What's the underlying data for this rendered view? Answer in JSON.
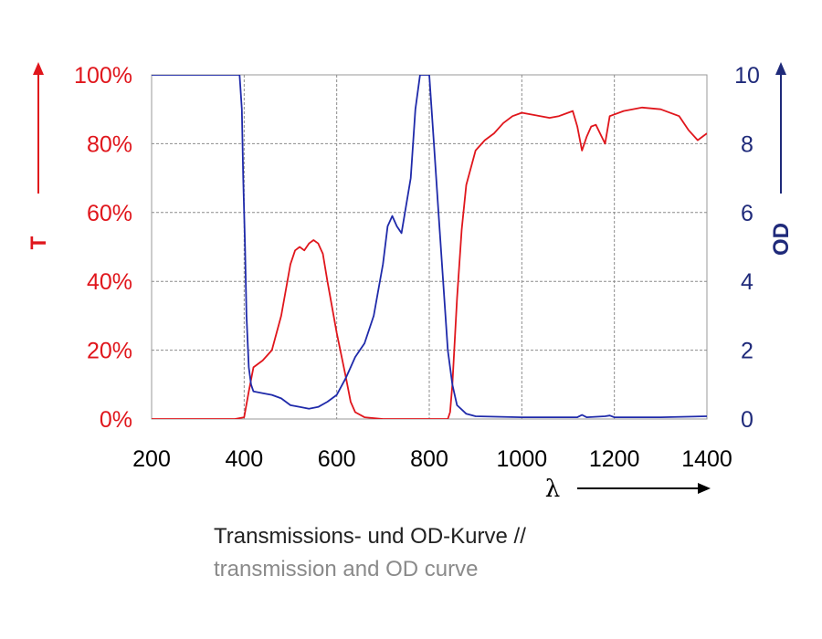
{
  "chart_data": {
    "type": "line",
    "x_axis": {
      "label": "λ",
      "range": [
        200,
        1400
      ],
      "ticks": [
        200,
        400,
        600,
        800,
        1000,
        1200,
        1400
      ],
      "tick_labels": [
        "200",
        "400",
        "600",
        "800",
        "1000",
        "1200",
        "1400"
      ]
    },
    "y_axis_left": {
      "label": "T",
      "range": [
        0,
        100
      ],
      "ticks": [
        0,
        20,
        40,
        60,
        80,
        100
      ],
      "tick_labels": [
        "0%",
        "20%",
        "40%",
        "60%",
        "80%",
        "100%"
      ],
      "color": "#e0161c"
    },
    "y_axis_right": {
      "label": "OD",
      "range": [
        0,
        10
      ],
      "ticks": [
        0,
        2,
        4,
        6,
        8,
        10
      ],
      "tick_labels": [
        "0",
        "2",
        "4",
        "6",
        "8",
        "10"
      ],
      "color": "#1f2a7a"
    },
    "grid": true,
    "series": [
      {
        "axis": "left",
        "color": "#e0161c",
        "points": [
          [
            200,
            0
          ],
          [
            380,
            0
          ],
          [
            400,
            0.5
          ],
          [
            410,
            8
          ],
          [
            420,
            15
          ],
          [
            440,
            17
          ],
          [
            460,
            20
          ],
          [
            480,
            30
          ],
          [
            500,
            45
          ],
          [
            510,
            49
          ],
          [
            520,
            50
          ],
          [
            530,
            49
          ],
          [
            540,
            51
          ],
          [
            550,
            52
          ],
          [
            560,
            51
          ],
          [
            570,
            48
          ],
          [
            580,
            40
          ],
          [
            600,
            25
          ],
          [
            620,
            12
          ],
          [
            630,
            5
          ],
          [
            640,
            2
          ],
          [
            660,
            0.5
          ],
          [
            700,
            0
          ],
          [
            840,
            0
          ],
          [
            845,
            2
          ],
          [
            850,
            10
          ],
          [
            860,
            35
          ],
          [
            870,
            55
          ],
          [
            880,
            68
          ],
          [
            900,
            78
          ],
          [
            920,
            81
          ],
          [
            940,
            83
          ],
          [
            960,
            86
          ],
          [
            980,
            88
          ],
          [
            1000,
            89
          ],
          [
            1020,
            88.5
          ],
          [
            1040,
            88
          ],
          [
            1060,
            87.5
          ],
          [
            1080,
            88
          ],
          [
            1100,
            89
          ],
          [
            1110,
            89.5
          ],
          [
            1120,
            85
          ],
          [
            1130,
            78
          ],
          [
            1140,
            82
          ],
          [
            1150,
            85
          ],
          [
            1160,
            85.5
          ],
          [
            1180,
            80
          ],
          [
            1190,
            88
          ],
          [
            1220,
            89.5
          ],
          [
            1260,
            90.5
          ],
          [
            1300,
            90
          ],
          [
            1340,
            88
          ],
          [
            1360,
            84
          ],
          [
            1380,
            81
          ],
          [
            1390,
            82
          ],
          [
            1400,
            83
          ]
        ]
      },
      {
        "axis": "right",
        "color": "#1f2aaa",
        "points": [
          [
            200,
            10
          ],
          [
            390,
            10
          ],
          [
            395,
            9
          ],
          [
            398,
            7
          ],
          [
            402,
            5
          ],
          [
            405,
            3
          ],
          [
            410,
            1.5
          ],
          [
            415,
            1
          ],
          [
            420,
            0.8
          ],
          [
            440,
            0.75
          ],
          [
            460,
            0.7
          ],
          [
            480,
            0.6
          ],
          [
            500,
            0.4
          ],
          [
            520,
            0.35
          ],
          [
            540,
            0.3
          ],
          [
            560,
            0.35
          ],
          [
            580,
            0.5
          ],
          [
            600,
            0.7
          ],
          [
            620,
            1.2
          ],
          [
            640,
            1.8
          ],
          [
            660,
            2.2
          ],
          [
            680,
            3
          ],
          [
            700,
            4.5
          ],
          [
            710,
            5.6
          ],
          [
            720,
            5.9
          ],
          [
            730,
            5.6
          ],
          [
            740,
            5.4
          ],
          [
            760,
            7
          ],
          [
            770,
            9
          ],
          [
            780,
            10
          ],
          [
            800,
            10
          ],
          [
            810,
            8
          ],
          [
            820,
            6
          ],
          [
            830,
            4
          ],
          [
            840,
            2
          ],
          [
            850,
            1
          ],
          [
            860,
            0.4
          ],
          [
            880,
            0.15
          ],
          [
            900,
            0.08
          ],
          [
            1000,
            0.05
          ],
          [
            1120,
            0.05
          ],
          [
            1130,
            0.12
          ],
          [
            1140,
            0.05
          ],
          [
            1180,
            0.08
          ],
          [
            1190,
            0.1
          ],
          [
            1200,
            0.05
          ],
          [
            1300,
            0.05
          ],
          [
            1400,
            0.08
          ]
        ]
      }
    ]
  },
  "caption": {
    "line1": "Transmissions- und OD-Kurve //",
    "line2": "transmission and OD curve"
  }
}
